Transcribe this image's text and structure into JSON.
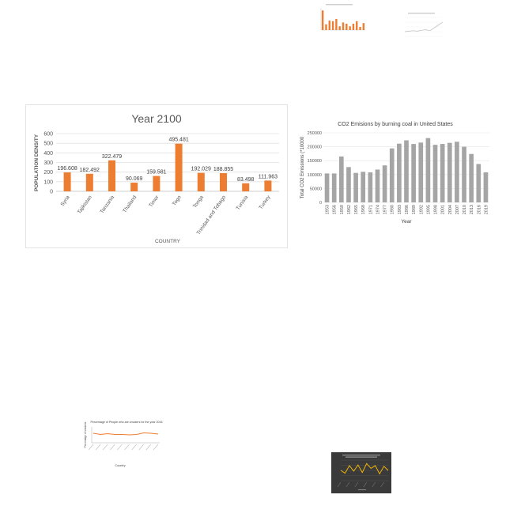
{
  "chart_data": [
    {
      "type": "bar",
      "title": "Year 2100",
      "xlabel": "COUNTRY",
      "ylabel": "POPULATION DENSITY",
      "categories": [
        "Syria",
        "Tajikistan",
        "Tanzania",
        "Thailand",
        "Timor",
        "Togo",
        "Tonga",
        "Trinidad and Tobago",
        "Tunisia",
        "Turkey"
      ],
      "values": [
        196.608,
        182.492,
        322.479,
        90.069,
        159.581,
        495.481,
        192.029,
        188.855,
        83.498,
        111.963
      ],
      "data_labels": [
        "196.608",
        "182.492",
        "322.479",
        "90.069",
        "159.581",
        "495.481",
        "192.029",
        "188.855",
        "83.498",
        "111.963"
      ],
      "ylim": [
        0,
        600
      ],
      "yticks": [
        "0",
        "100",
        "200",
        "300",
        "400",
        "500",
        "600"
      ],
      "grid": true,
      "color": "#ed7d31"
    },
    {
      "type": "bar",
      "title": "CO2 Emisions by burning coal in United States",
      "xlabel": "Year",
      "ylabel": "Total CO2 Emissions (*10000",
      "categories": [
        "1953",
        "1956",
        "1959",
        "1962",
        "1965",
        "1968",
        "1971",
        "1974",
        "1977",
        "1980",
        "1983",
        "1986",
        "1989",
        "1992",
        "1995",
        "1998",
        "2001",
        "2004",
        "2007",
        "2010",
        "2013",
        "2016",
        "2019"
      ],
      "values": [
        104000,
        104000,
        165000,
        127000,
        106000,
        110000,
        108000,
        118000,
        133000,
        194000,
        211000,
        223000,
        210000,
        215000,
        231000,
        207000,
        210000,
        214000,
        218000,
        200000,
        174000,
        138000,
        108000
      ],
      "ylim": [
        0,
        250000
      ],
      "yticks": [
        "0",
        "50000",
        "100000",
        "150000",
        "200000",
        "250000"
      ],
      "grid": true,
      "color": "#a5a5a5"
    },
    {
      "type": "bar",
      "title": "",
      "values": [
        62,
        18,
        30,
        28,
        35,
        12,
        24,
        20,
        12,
        20,
        28,
        10,
        22
      ],
      "ylim": [
        0,
        70
      ],
      "color": "#ed7d31"
    },
    {
      "type": "line",
      "title": "",
      "values": [
        10,
        11,
        12,
        11,
        13,
        14,
        12,
        18,
        24,
        30
      ],
      "ylim": [
        0,
        40
      ],
      "color": "#bbbbbb"
    },
    {
      "type": "line",
      "title": "Percentage of People who are smokers for the year 2016",
      "xlabel": "Country",
      "ylabel": "Percentage of smokers",
      "values": [
        24,
        21,
        23,
        21,
        21,
        20,
        21,
        25,
        24,
        22
      ],
      "ylim": [
        0,
        40
      ],
      "color": "#ed7d31"
    },
    {
      "type": "line",
      "title": "",
      "values": [
        30,
        22,
        44,
        28,
        46,
        24,
        50,
        36,
        44,
        20,
        42,
        30
      ],
      "ylim": [
        0,
        60
      ],
      "color": "#ffc000"
    }
  ]
}
